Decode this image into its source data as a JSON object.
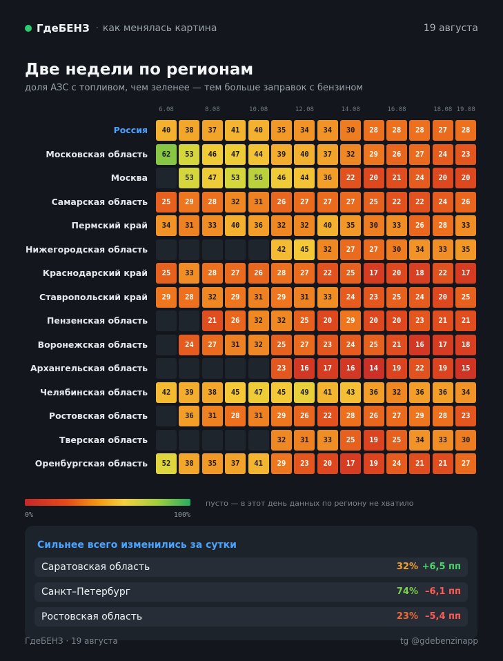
{
  "header": {
    "brand": "ГдеБЕНЗ",
    "separator": "·",
    "tagline": "как менялась картина",
    "date": "19 августа"
  },
  "title": "Две недели по регионам",
  "subtitle": "доля АЗС с топливом, чем зеленее — тем больше заправок с бензином",
  "chart_data": {
    "type": "heatmap",
    "title": "Две недели по регионам",
    "subtitle": "доля АЗС с топливом, чем зеленее — тем больше заправок с бензином",
    "unit": "%",
    "color_scale": {
      "min": 0,
      "max": 100,
      "min_label": "0%",
      "max_label": "100%",
      "low_color": "#c62828",
      "mid_color": "#f4d03f",
      "high_color": "#27ae60",
      "empty_color": "#1f252d"
    },
    "x_tick_labels": [
      {
        "col": 0,
        "label": "6.08"
      },
      {
        "col": 2,
        "label": "8.08"
      },
      {
        "col": 4,
        "label": "10.08"
      },
      {
        "col": 6,
        "label": "12.08"
      },
      {
        "col": 8,
        "label": "14.08"
      },
      {
        "col": 10,
        "label": "16.08"
      },
      {
        "col": 12,
        "label": "18.08"
      },
      {
        "col": 13,
        "label": "19.08"
      }
    ],
    "rows": [
      {
        "name": "Россия",
        "highlight": true,
        "values": [
          40,
          38,
          37,
          41,
          40,
          35,
          34,
          34,
          30,
          28,
          28,
          28,
          27,
          28
        ]
      },
      {
        "name": "Московская область",
        "values": [
          62,
          53,
          46,
          47,
          44,
          39,
          40,
          37,
          32,
          29,
          26,
          27,
          24,
          23
        ]
      },
      {
        "name": "Москва",
        "values": [
          null,
          53,
          47,
          53,
          56,
          46,
          44,
          36,
          22,
          20,
          21,
          24,
          20,
          20
        ]
      },
      {
        "name": "Самарская область",
        "values": [
          25,
          29,
          28,
          32,
          31,
          26,
          27,
          27,
          27,
          25,
          22,
          22,
          24,
          26
        ]
      },
      {
        "name": "Пермский край",
        "values": [
          34,
          31,
          33,
          40,
          36,
          32,
          32,
          40,
          35,
          30,
          33,
          26,
          28,
          33
        ]
      },
      {
        "name": "Нижегородская область",
        "values": [
          null,
          null,
          null,
          null,
          null,
          42,
          45,
          32,
          27,
          27,
          30,
          34,
          33,
          35
        ]
      },
      {
        "name": "Краснодарский край",
        "values": [
          25,
          33,
          28,
          27,
          26,
          28,
          27,
          22,
          25,
          17,
          20,
          18,
          22,
          17
        ]
      },
      {
        "name": "Ставропольский край",
        "values": [
          29,
          28,
          32,
          29,
          31,
          29,
          31,
          33,
          24,
          23,
          25,
          24,
          20,
          25
        ]
      },
      {
        "name": "Пензенская область",
        "values": [
          null,
          null,
          21,
          26,
          32,
          32,
          25,
          20,
          29,
          20,
          20,
          23,
          21,
          21
        ]
      },
      {
        "name": "Воронежская область",
        "values": [
          null,
          24,
          27,
          31,
          32,
          25,
          27,
          23,
          24,
          25,
          21,
          16,
          17,
          18
        ]
      },
      {
        "name": "Архангельская область",
        "values": [
          null,
          null,
          null,
          null,
          null,
          23,
          16,
          17,
          16,
          14,
          19,
          22,
          19,
          15
        ]
      },
      {
        "name": "Челябинская область",
        "values": [
          42,
          39,
          38,
          45,
          47,
          45,
          49,
          41,
          43,
          36,
          32,
          36,
          36,
          34
        ]
      },
      {
        "name": "Ростовская область",
        "values": [
          null,
          36,
          31,
          28,
          31,
          29,
          26,
          22,
          28,
          26,
          27,
          29,
          28,
          23
        ]
      },
      {
        "name": "Тверская область",
        "values": [
          null,
          null,
          null,
          null,
          null,
          32,
          31,
          33,
          25,
          19,
          25,
          34,
          33,
          30
        ]
      },
      {
        "name": "Оренбургская область",
        "values": [
          52,
          38,
          35,
          37,
          41,
          29,
          23,
          20,
          17,
          19,
          24,
          21,
          21,
          27
        ]
      }
    ]
  },
  "legend": {
    "min_label": "0%",
    "max_label": "100%",
    "empty_note": "пусто — в этот день данных по региону не хватило"
  },
  "changes": {
    "title": "Сильнее всего изменились за сутки",
    "items": [
      {
        "name": "Саратовская область",
        "value": "32%",
        "delta": "+6,5 пп",
        "value_color": "#f0a030",
        "direction": "up"
      },
      {
        "name": "Санкт–Петербург",
        "value": "74%",
        "delta": "–6,1 пп",
        "value_color": "#7ad04a",
        "direction": "down"
      },
      {
        "name": "Ростовская область",
        "value": "23%",
        "delta": "–5,4 пп",
        "value_color": "#ee6a3a",
        "direction": "down"
      }
    ]
  },
  "footer": {
    "left": "ГдеБЕНЗ · 19 августа",
    "right": "tg @gdebenzinapp"
  }
}
